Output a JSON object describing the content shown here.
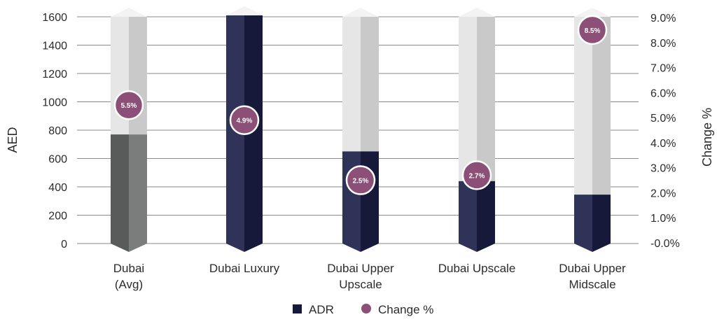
{
  "chart_data": {
    "type": "bar",
    "categories": [
      [
        "Dubai",
        "(Avg)"
      ],
      [
        "Dubai Luxury"
      ],
      [
        "Dubai Upper",
        "Upscale"
      ],
      [
        "Dubai Upscale"
      ],
      [
        "Dubai Upper",
        "Midscale"
      ]
    ],
    "series": [
      {
        "name": "ADR",
        "axis": "left",
        "kind": "bar",
        "values": [
          770,
          1610,
          650,
          440,
          345
        ]
      },
      {
        "name": "Change %",
        "axis": "right",
        "kind": "point",
        "values": [
          5.5,
          4.9,
          2.5,
          2.7,
          8.5
        ]
      }
    ],
    "point_labels": [
      "5.5%",
      "4.9%",
      "2.5%",
      "2.7%",
      "8.5%"
    ],
    "ylabel_left": "AED",
    "ylabel_right": "Change %",
    "ylim_left": [
      0,
      1600
    ],
    "yticks_left": [
      "0",
      "200",
      "400",
      "600",
      "800",
      "1000",
      "1200",
      "1400",
      "1600"
    ],
    "ylim_right": [
      0,
      9
    ],
    "yticks_right": [
      "-0.0%",
      "1.0%",
      "2.0%",
      "3.0%",
      "4.0%",
      "5.0%",
      "6.0%",
      "7.0%",
      "8.0%",
      "9.0%"
    ],
    "grid": true,
    "legend_position": "bottom-center",
    "legend": [
      "ADR",
      "Change %"
    ],
    "colors": {
      "bar_main": "#2f3358",
      "bar_side": "#16193a",
      "bar_avg_main": "#585b5a",
      "bar_avg_side": "#7a7d7c",
      "track_main": "#e6e6e6",
      "track_side": "#c9c9c9",
      "track_top": "#f3f3f3",
      "point": "#8b4f78",
      "legend_adr": "#16193a",
      "grid": "#8a8a8a"
    }
  }
}
